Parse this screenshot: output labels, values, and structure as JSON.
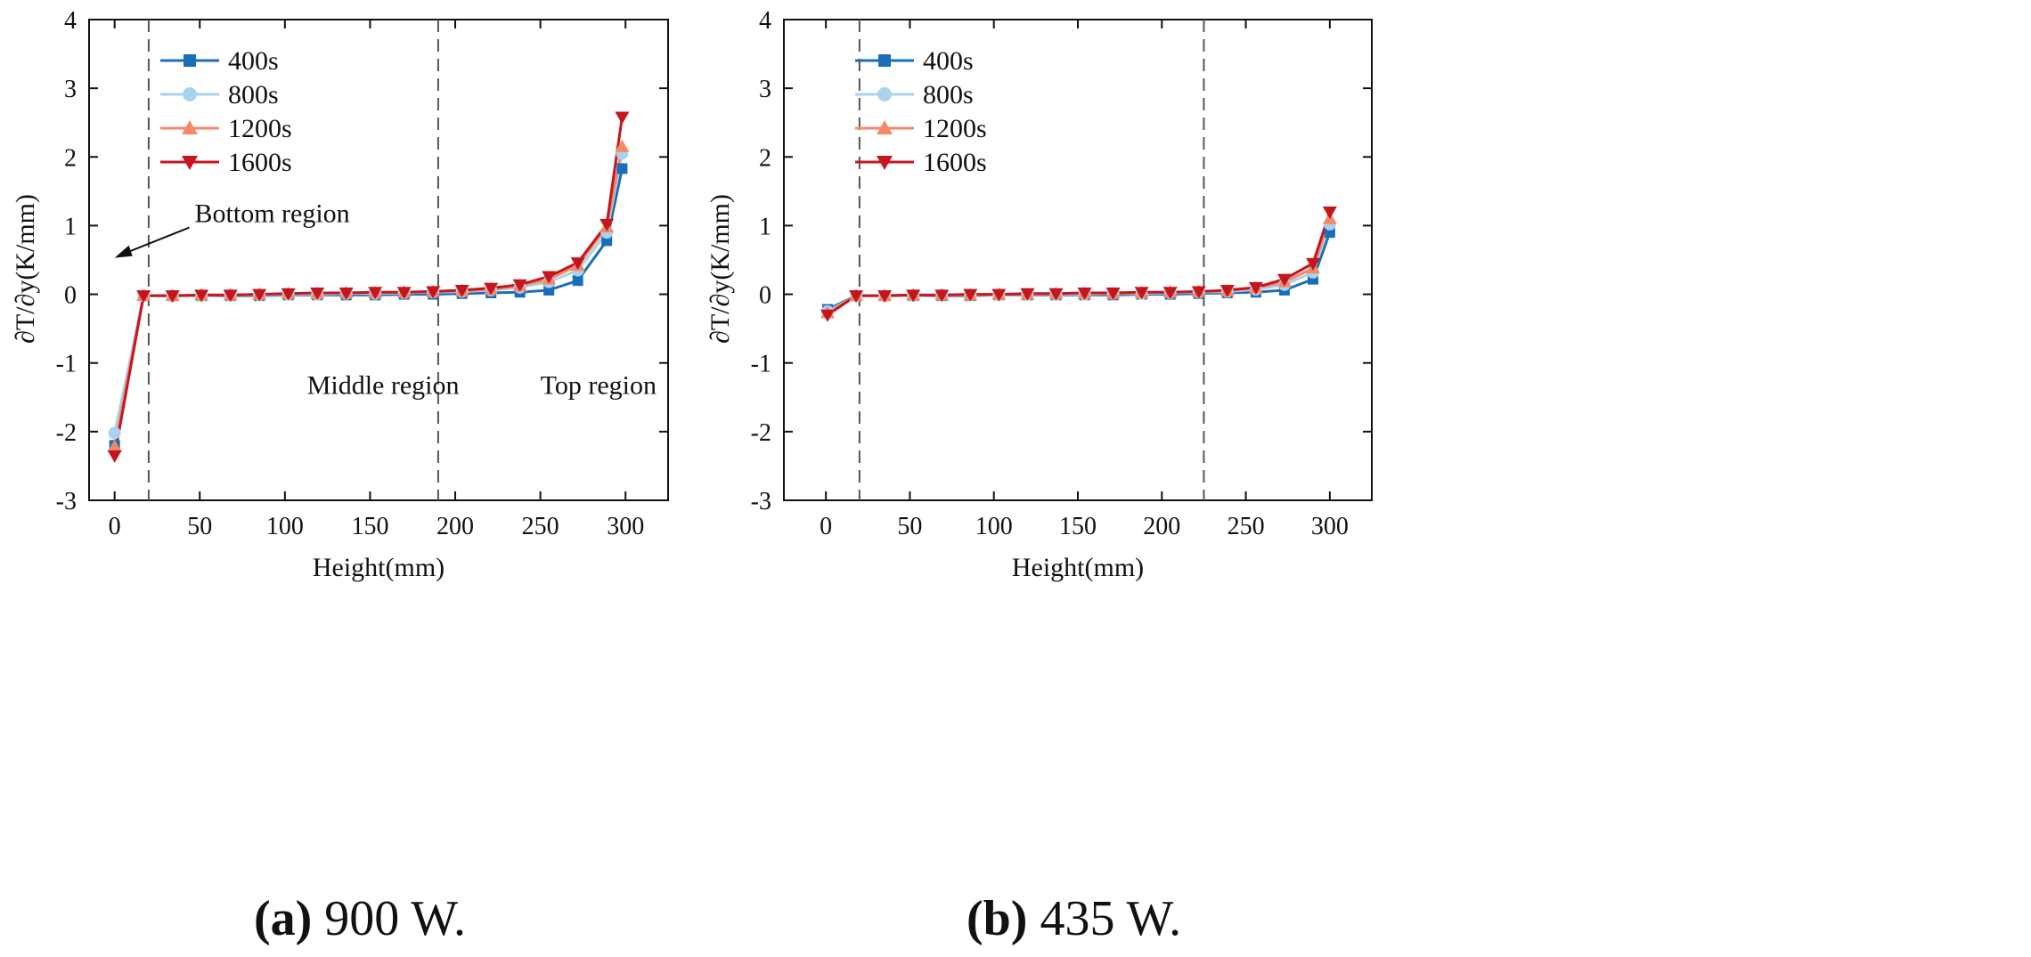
{
  "chart_data": [
    {
      "type": "line",
      "panel": "a",
      "xlabel": "Height(mm)",
      "ylabel": "∂T/∂y(K/mm)",
      "xlim": [
        -15,
        325
      ],
      "ylim": [
        -3,
        4
      ],
      "xticks": [
        0,
        50,
        100,
        150,
        200,
        250,
        300
      ],
      "yticks": [
        -3,
        -2,
        -1,
        0,
        1,
        2,
        3,
        4
      ],
      "grid": false,
      "legend_position": "top-left",
      "dividers": [
        20,
        190
      ],
      "annotations": [
        {
          "text": "Bottom region",
          "x": 47,
          "y": 1.05,
          "arrow_to": [
            0,
            0.53
          ]
        },
        {
          "text": "Middle region",
          "x": 113,
          "y": -1.45
        },
        {
          "text": "Top region",
          "x": 250,
          "y": -1.45
        }
      ],
      "series": [
        {
          "name": "400s",
          "color": "#1a6eb8",
          "marker": "square",
          "x": [
            0,
            17,
            34,
            51,
            68,
            85,
            102,
            119,
            136,
            153,
            170,
            187,
            204,
            221,
            238,
            255,
            272,
            289,
            298
          ],
          "y": [
            -2.2,
            -0.02,
            -0.02,
            -0.02,
            -0.02,
            -0.02,
            -0.01,
            -0.01,
            -0.01,
            -0.01,
            0.0,
            0.0,
            0.01,
            0.02,
            0.03,
            0.06,
            0.2,
            0.78,
            1.83
          ]
        },
        {
          "name": "800s",
          "color": "#a9d3ec",
          "marker": "circle",
          "x": [
            0,
            17,
            34,
            51,
            68,
            85,
            102,
            119,
            136,
            153,
            170,
            187,
            204,
            221,
            238,
            255,
            272,
            289,
            298
          ],
          "y": [
            -2.02,
            -0.02,
            -0.02,
            -0.02,
            -0.01,
            -0.01,
            0.0,
            0.0,
            0.01,
            0.01,
            0.02,
            0.03,
            0.04,
            0.06,
            0.1,
            0.18,
            0.35,
            0.9,
            2.05
          ]
        },
        {
          "name": "1200s",
          "color": "#f4896a",
          "marker": "triangle-up",
          "x": [
            0,
            17,
            34,
            51,
            68,
            85,
            102,
            119,
            136,
            153,
            170,
            187,
            204,
            221,
            238,
            255,
            272,
            289,
            298
          ],
          "y": [
            -2.22,
            -0.02,
            -0.02,
            -0.01,
            -0.01,
            0.0,
            0.01,
            0.01,
            0.02,
            0.02,
            0.03,
            0.04,
            0.05,
            0.07,
            0.12,
            0.22,
            0.42,
            0.98,
            2.15
          ]
        },
        {
          "name": "1600s",
          "color": "#c4161c",
          "marker": "triangle-down",
          "x": [
            0,
            17,
            34,
            51,
            68,
            85,
            102,
            119,
            136,
            153,
            170,
            187,
            204,
            221,
            238,
            255,
            272,
            289,
            298
          ],
          "y": [
            -2.35,
            -0.02,
            -0.02,
            -0.01,
            -0.01,
            0.0,
            0.01,
            0.02,
            0.02,
            0.03,
            0.03,
            0.04,
            0.06,
            0.09,
            0.14,
            0.26,
            0.46,
            1.02,
            2.58
          ]
        }
      ]
    },
    {
      "type": "line",
      "panel": "b",
      "xlabel": "Height(mm)",
      "ylabel": "∂T/∂y(K/mm)",
      "xlim": [
        -25,
        325
      ],
      "ylim": [
        -3,
        4
      ],
      "xticks": [
        0,
        50,
        100,
        150,
        200,
        250,
        300
      ],
      "yticks": [
        -3,
        -2,
        -1,
        0,
        1,
        2,
        3,
        4
      ],
      "grid": false,
      "legend_position": "top-left",
      "dividers": [
        20,
        225
      ],
      "annotations": [],
      "series": [
        {
          "name": "400s",
          "color": "#1a6eb8",
          "marker": "square",
          "x": [
            1,
            18,
            35,
            52,
            69,
            86,
            103,
            120,
            137,
            154,
            171,
            188,
            205,
            222,
            239,
            256,
            273,
            290,
            300
          ],
          "y": [
            -0.22,
            -0.02,
            -0.02,
            -0.02,
            -0.02,
            -0.02,
            -0.01,
            -0.01,
            -0.01,
            -0.01,
            -0.01,
            0.0,
            0.0,
            0.01,
            0.02,
            0.03,
            0.06,
            0.22,
            0.9
          ]
        },
        {
          "name": "800s",
          "color": "#a9d3ec",
          "marker": "circle",
          "x": [
            1,
            18,
            35,
            52,
            69,
            86,
            103,
            120,
            137,
            154,
            171,
            188,
            205,
            222,
            239,
            256,
            273,
            290,
            300
          ],
          "y": [
            -0.25,
            -0.02,
            -0.02,
            -0.02,
            -0.01,
            -0.01,
            -0.01,
            0.0,
            0.0,
            0.0,
            0.01,
            0.01,
            0.02,
            0.03,
            0.04,
            0.07,
            0.14,
            0.32,
            1.02
          ]
        },
        {
          "name": "1200s",
          "color": "#f4896a",
          "marker": "triangle-up",
          "x": [
            1,
            18,
            35,
            52,
            69,
            86,
            103,
            120,
            137,
            154,
            171,
            188,
            205,
            222,
            239,
            256,
            273,
            290,
            300
          ],
          "y": [
            -0.27,
            -0.02,
            -0.02,
            -0.01,
            -0.01,
            -0.01,
            0.0,
            0.0,
            0.01,
            0.01,
            0.01,
            0.02,
            0.03,
            0.04,
            0.05,
            0.09,
            0.18,
            0.38,
            1.1
          ]
        },
        {
          "name": "1600s",
          "color": "#c4161c",
          "marker": "triangle-down",
          "x": [
            1,
            18,
            35,
            52,
            69,
            86,
            103,
            120,
            137,
            154,
            171,
            188,
            205,
            222,
            239,
            256,
            273,
            290,
            300
          ],
          "y": [
            -0.3,
            -0.02,
            -0.02,
            -0.01,
            -0.01,
            0.0,
            0.0,
            0.01,
            0.01,
            0.02,
            0.02,
            0.03,
            0.03,
            0.04,
            0.06,
            0.1,
            0.22,
            0.45,
            1.2
          ]
        }
      ]
    }
  ],
  "captions": [
    {
      "letter": "(a)",
      "text": " 900 W."
    },
    {
      "letter": "(b)",
      "text": " 435 W."
    }
  ]
}
